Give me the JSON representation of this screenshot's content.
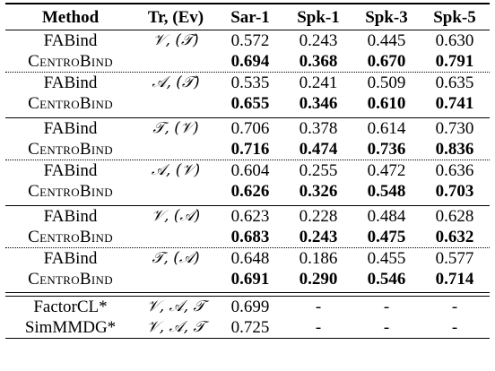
{
  "header": {
    "method": "Method",
    "tr": "Tr, (Ev)",
    "c1": "Sar-1",
    "c2": "Spk-1",
    "c3": "Spk-3",
    "c4": "Spk-5"
  },
  "groups": [
    {
      "pairs": [
        {
          "setting": "𝒱, (𝒯)",
          "fab": {
            "name": "FABind",
            "v": [
              "0.572",
              "0.243",
              "0.445",
              "0.630"
            ]
          },
          "cen": {
            "name": "CentroBind",
            "v": [
              "0.694",
              "0.368",
              "0.670",
              "0.791"
            ]
          }
        },
        {
          "setting": "𝒜, (𝒯)",
          "fab": {
            "name": "FABind",
            "v": [
              "0.535",
              "0.241",
              "0.509",
              "0.635"
            ]
          },
          "cen": {
            "name": "CentroBind",
            "v": [
              "0.655",
              "0.346",
              "0.610",
              "0.741"
            ]
          }
        }
      ]
    },
    {
      "pairs": [
        {
          "setting": "𝒯, (𝒱)",
          "fab": {
            "name": "FABind",
            "v": [
              "0.706",
              "0.378",
              "0.614",
              "0.730"
            ]
          },
          "cen": {
            "name": "CentroBind",
            "v": [
              "0.716",
              "0.474",
              "0.736",
              "0.836"
            ]
          }
        },
        {
          "setting": "𝒜, (𝒱)",
          "fab": {
            "name": "FABind",
            "v": [
              "0.604",
              "0.255",
              "0.472",
              "0.636"
            ]
          },
          "cen": {
            "name": "CentroBind",
            "v": [
              "0.626",
              "0.326",
              "0.548",
              "0.703"
            ]
          }
        }
      ]
    },
    {
      "pairs": [
        {
          "setting": "𝒱, (𝒜)",
          "fab": {
            "name": "FABind",
            "v": [
              "0.623",
              "0.228",
              "0.484",
              "0.628"
            ]
          },
          "cen": {
            "name": "CentroBind",
            "v": [
              "0.683",
              "0.243",
              "0.475",
              "0.632"
            ]
          }
        },
        {
          "setting": "𝒯, (𝒜)",
          "fab": {
            "name": "FABind",
            "v": [
              "0.648",
              "0.186",
              "0.455",
              "0.577"
            ]
          },
          "cen": {
            "name": "CentroBind",
            "v": [
              "0.691",
              "0.290",
              "0.546",
              "0.714"
            ]
          }
        }
      ]
    }
  ],
  "extra": [
    {
      "name": "FactorCL*",
      "setting": "𝒱, 𝒜, 𝒯",
      "v": [
        "0.699",
        "-",
        "-",
        "-"
      ]
    },
    {
      "name": "SimMMDG*",
      "setting": "𝒱, 𝒜, 𝒯",
      "v": [
        "0.725",
        "-",
        "-",
        "-"
      ]
    }
  ]
}
